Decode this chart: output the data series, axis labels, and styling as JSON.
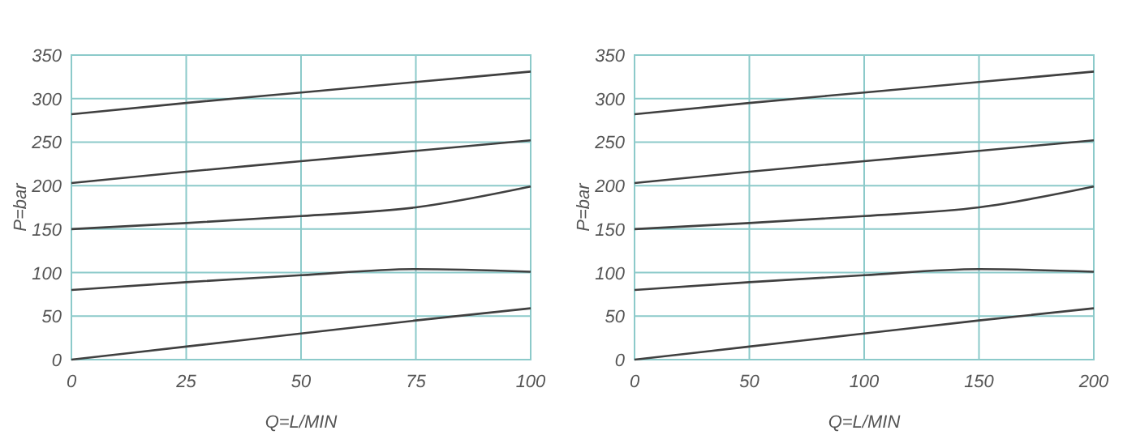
{
  "chart_data": [
    {
      "type": "line",
      "xlabel": "Q=L/MIN",
      "ylabel": "P=bar",
      "x": [
        0,
        25,
        50,
        75,
        100
      ],
      "xlim": [
        0,
        100
      ],
      "xticks": [
        0,
        25,
        50,
        75,
        100
      ],
      "ylim": [
        0,
        350
      ],
      "yticks": [
        0,
        50,
        100,
        150,
        200,
        250,
        300,
        350
      ],
      "grid": true,
      "marker": "none",
      "line_style": "solid",
      "series": [
        {
          "color": "#404040",
          "values": [
            282,
            295,
            307,
            319,
            331
          ]
        },
        {
          "color": "#404040",
          "values": [
            203,
            216,
            228,
            240,
            252
          ]
        },
        {
          "color": "#404040",
          "values": [
            150,
            157,
            165,
            175,
            199
          ]
        },
        {
          "color": "#404040",
          "values": [
            80,
            89,
            97,
            104,
            101
          ]
        },
        {
          "color": "#404040",
          "values": [
            0,
            15,
            30,
            45,
            59
          ]
        }
      ]
    },
    {
      "type": "line",
      "xlabel": "Q=L/MIN",
      "ylabel": "P=bar",
      "x": [
        0,
        50,
        100,
        150,
        200
      ],
      "xlim": [
        0,
        200
      ],
      "xticks": [
        0,
        50,
        100,
        150,
        200
      ],
      "ylim": [
        0,
        350
      ],
      "yticks": [
        0,
        50,
        100,
        150,
        200,
        250,
        300,
        350
      ],
      "grid": true,
      "marker": "none",
      "line_style": "solid",
      "series": [
        {
          "color": "#404040",
          "values": [
            282,
            295,
            307,
            319,
            331
          ]
        },
        {
          "color": "#404040",
          "values": [
            203,
            216,
            228,
            240,
            252
          ]
        },
        {
          "color": "#404040",
          "values": [
            150,
            157,
            165,
            175,
            199
          ]
        },
        {
          "color": "#404040",
          "values": [
            80,
            89,
            97,
            104,
            101
          ]
        },
        {
          "color": "#404040",
          "values": [
            0,
            15,
            30,
            45,
            59
          ]
        }
      ]
    }
  ]
}
